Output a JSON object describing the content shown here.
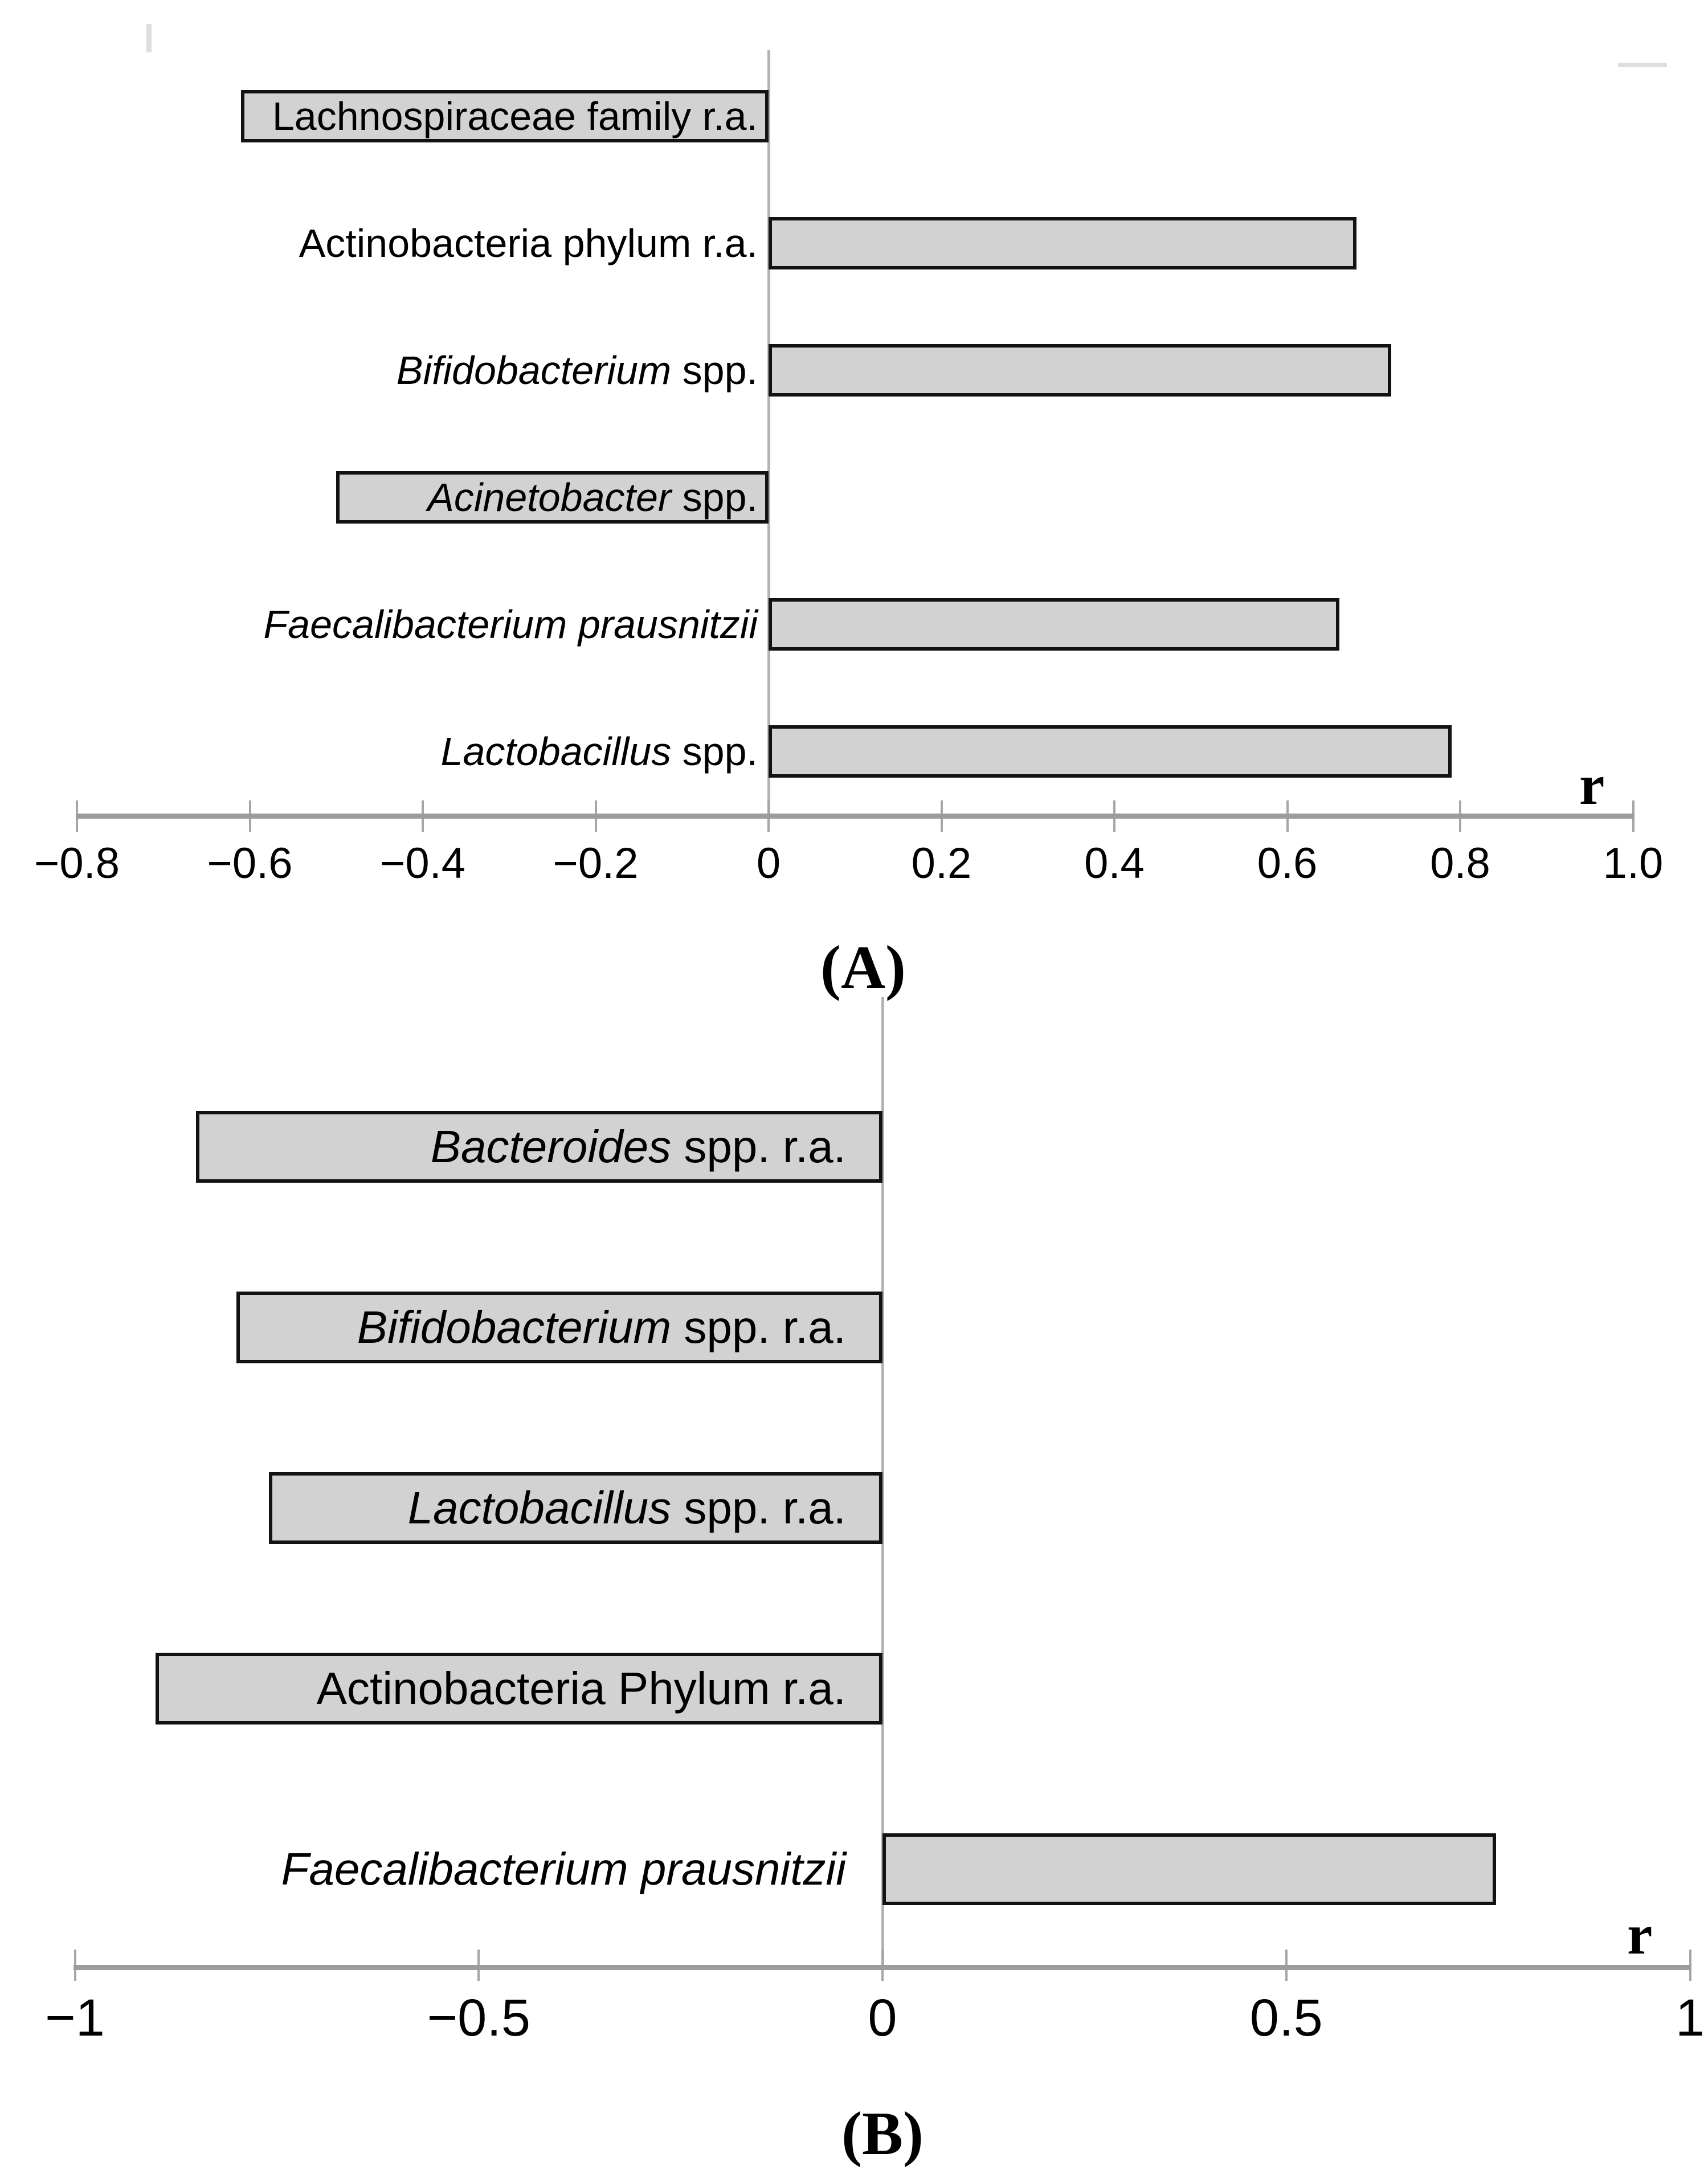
{
  "figure": {
    "background": "#ffffff",
    "bar_fill_color": "#d2d2d2",
    "bar_border_color": "#121212",
    "axis_line_color": "#9c9c9c",
    "panels": [
      {
        "id": "A",
        "label": "(A)"
      },
      {
        "id": "B",
        "label": "(B)"
      }
    ]
  },
  "chart_data": [
    {
      "type": "bar",
      "orientation": "horizontal",
      "panel_label": "(A)",
      "title": "",
      "xlabel": "r",
      "ylabel": "",
      "xlim": [
        -0.8,
        1.0
      ],
      "xticks": [
        -0.8,
        -0.6,
        -0.4,
        -0.2,
        0,
        0.2,
        0.4,
        0.6,
        0.8,
        1.0
      ],
      "xtick_labels": [
        "−0.8",
        "−0.6",
        "−0.4",
        "−0.2",
        "0",
        "0.2",
        "0.4",
        "0.6",
        "0.8",
        "1.0"
      ],
      "grid": false,
      "legend": null,
      "categories": [
        "Lachnospiraceae family r.a.",
        "Actinobacteria phylum r.a.",
        "Bifidobacterium spp.",
        "Acinetobacter spp.",
        "Faecalibacterium prausnitzii",
        "Lactobacillus spp."
      ],
      "values": [
        -0.61,
        0.68,
        0.72,
        -0.5,
        0.66,
        0.79
      ],
      "category_segments": [
        [
          {
            "text": "Lachnospiraceae family r.a.",
            "italic": false
          }
        ],
        [
          {
            "text": "Actinobacteria phylum r.a.",
            "italic": false
          }
        ],
        [
          {
            "text": "Bifidobacterium",
            "italic": true
          },
          {
            "text": " spp.",
            "italic": false
          }
        ],
        [
          {
            "text": "Acinetobacter",
            "italic": true
          },
          {
            "text": " spp.",
            "italic": false
          }
        ],
        [
          {
            "text": "Faecalibacterium prausnitzii",
            "italic": true
          }
        ],
        [
          {
            "text": "Lactobacillus",
            "italic": true
          },
          {
            "text": " spp.",
            "italic": false
          }
        ]
      ]
    },
    {
      "type": "bar",
      "orientation": "horizontal",
      "panel_label": "(B)",
      "title": "",
      "xlabel": "r",
      "ylabel": "",
      "xlim": [
        -1,
        1
      ],
      "xticks": [
        -1,
        -0.5,
        0,
        0.5,
        1
      ],
      "xtick_labels": [
        "−1",
        "−0.5",
        "0",
        "0.5",
        "1"
      ],
      "grid": false,
      "legend": null,
      "categories": [
        "Bacteroides spp. r.a.",
        "Bifidobacterium spp. r.a.",
        "Lactobacillus spp. r.a.",
        "Actinobacteria Phylum r.a.",
        "Faecalibacterium prausnitzii"
      ],
      "values": [
        -0.85,
        -0.8,
        -0.76,
        -0.9,
        0.76
      ],
      "category_segments": [
        [
          {
            "text": "Bacteroides",
            "italic": true
          },
          {
            "text": " spp. r.a.",
            "italic": false
          }
        ],
        [
          {
            "text": "Bifidobacterium",
            "italic": true
          },
          {
            "text": " spp. r.a.",
            "italic": false
          }
        ],
        [
          {
            "text": "Lactobacillus",
            "italic": true
          },
          {
            "text": " spp. r.a.",
            "italic": false
          }
        ],
        [
          {
            "text": "Actinobacteria Phylum r.a.",
            "italic": false
          }
        ],
        [
          {
            "text": "Faecalibacterium prausnitzii",
            "italic": true
          }
        ]
      ]
    }
  ]
}
